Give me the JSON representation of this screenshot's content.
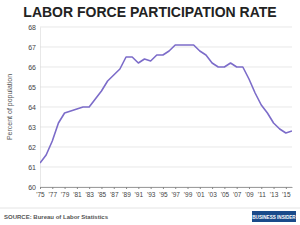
{
  "chart_data": {
    "type": "line",
    "title": "LABOR FORCE PARTICIPATION RATE",
    "y_label": "Percent of population",
    "annotations": [
      "SOURCE: Bureau of Labor Statistics",
      "BUSINESS INSIDER"
    ],
    "x": [
      1975,
      1976,
      1977,
      1978,
      1979,
      1980,
      1981,
      1982,
      1983,
      1984,
      1985,
      1986,
      1987,
      1988,
      1989,
      1990,
      1991,
      1992,
      1993,
      1994,
      1995,
      1996,
      1997,
      1998,
      1999,
      2000,
      2001,
      2002,
      2003,
      2004,
      2005,
      2006,
      2007,
      2008,
      2009,
      2010,
      2011,
      2012,
      2013,
      2014,
      2015,
      2016
    ],
    "values": [
      61.2,
      61.6,
      62.3,
      63.2,
      63.7,
      63.8,
      63.9,
      64.0,
      64.0,
      64.4,
      64.8,
      65.3,
      65.6,
      65.9,
      66.5,
      66.5,
      66.2,
      66.4,
      66.3,
      66.6,
      66.6,
      66.8,
      67.1,
      67.1,
      67.1,
      67.1,
      66.8,
      66.6,
      66.2,
      66.0,
      66.0,
      66.2,
      66.0,
      66.0,
      65.4,
      64.7,
      64.1,
      63.7,
      63.2,
      62.9,
      62.7,
      62.8
    ],
    "color": "#7c6cc9",
    "xlim": [
      1975,
      2016
    ],
    "xticks": [
      {
        "value": 1975,
        "label": "'75"
      },
      {
        "value": 1977,
        "label": "'77"
      },
      {
        "value": 1979,
        "label": "'79"
      },
      {
        "value": 1981,
        "label": "'81"
      },
      {
        "value": 1983,
        "label": "'83"
      },
      {
        "value": 1985,
        "label": "'85"
      },
      {
        "value": 1987,
        "label": "'87"
      },
      {
        "value": 1989,
        "label": "'89"
      },
      {
        "value": 1991,
        "label": "'91"
      },
      {
        "value": 1993,
        "label": "'93"
      },
      {
        "value": 1995,
        "label": "'95"
      },
      {
        "value": 1997,
        "label": "'97"
      },
      {
        "value": 1999,
        "label": "'99"
      },
      {
        "value": 2001,
        "label": "'01"
      },
      {
        "value": 2003,
        "label": "'03"
      },
      {
        "value": 2005,
        "label": "'05"
      },
      {
        "value": 2007,
        "label": "'07"
      },
      {
        "value": 2009,
        "label": "'09"
      },
      {
        "value": 2011,
        "label": "'11"
      },
      {
        "value": 2013,
        "label": "'13"
      },
      {
        "value": 2015,
        "label": "'15"
      }
    ],
    "ylim": [
      60,
      68
    ],
    "yticks": [
      60,
      61,
      62,
      63,
      64,
      65,
      66,
      67,
      68
    ],
    "grid": true
  }
}
